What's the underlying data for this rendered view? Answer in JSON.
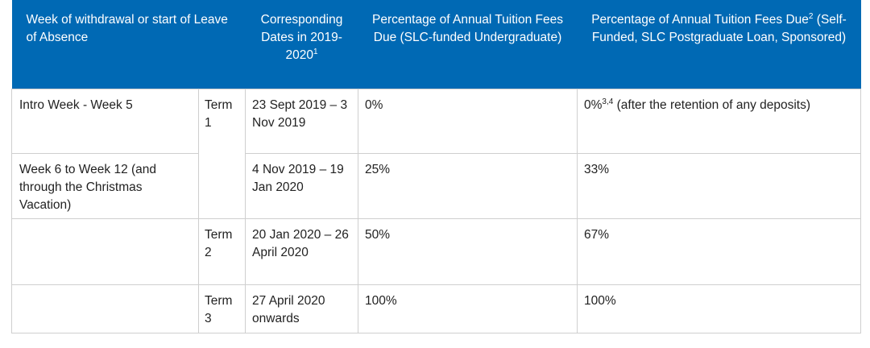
{
  "table": {
    "headers": {
      "week": "Week of withdrawal or start of Leave of Absence",
      "dates": "Corresponding Dates in 2019-2020",
      "dates_sup": "1",
      "slc_pct": "Percentage of Annual Tuition Fees Due (SLC-funded Undergraduate)",
      "self_pct": "Percentage of Annual Tuition Fees Due",
      "self_pct_sup": "2",
      "self_pct_sub": "(Self-Funded, SLC Postgraduate Loan, Sponsored)"
    },
    "rows": [
      {
        "week": "Intro Week - Week 5",
        "term": "Term 1",
        "dates": "23 Sept 2019 – 3 Nov 2019",
        "slc_pct": "0%",
        "self_pct": "0%",
        "self_pct_sup": "3,4",
        "self_pct_note": "(after the retention of any deposits)"
      },
      {
        "week": "Week 6 to Week 12 (and through the Christmas Vacation)",
        "term": "",
        "dates": "4 Nov 2019 – 19 Jan 2020",
        "slc_pct": "25%",
        "self_pct": "33%"
      },
      {
        "week": "",
        "term": "Term 2",
        "dates": "20 Jan 2020 – 26 April 2020",
        "slc_pct": "50%",
        "self_pct": "67%"
      },
      {
        "week": "",
        "term": "Term 3",
        "dates": "27 April 2020 onwards",
        "slc_pct": "100%",
        "self_pct": "100%"
      }
    ]
  },
  "colors": {
    "header_bg": "#0069b4",
    "header_text": "#ffffff",
    "border": "#cfcfcf",
    "body_text": "#222222"
  }
}
